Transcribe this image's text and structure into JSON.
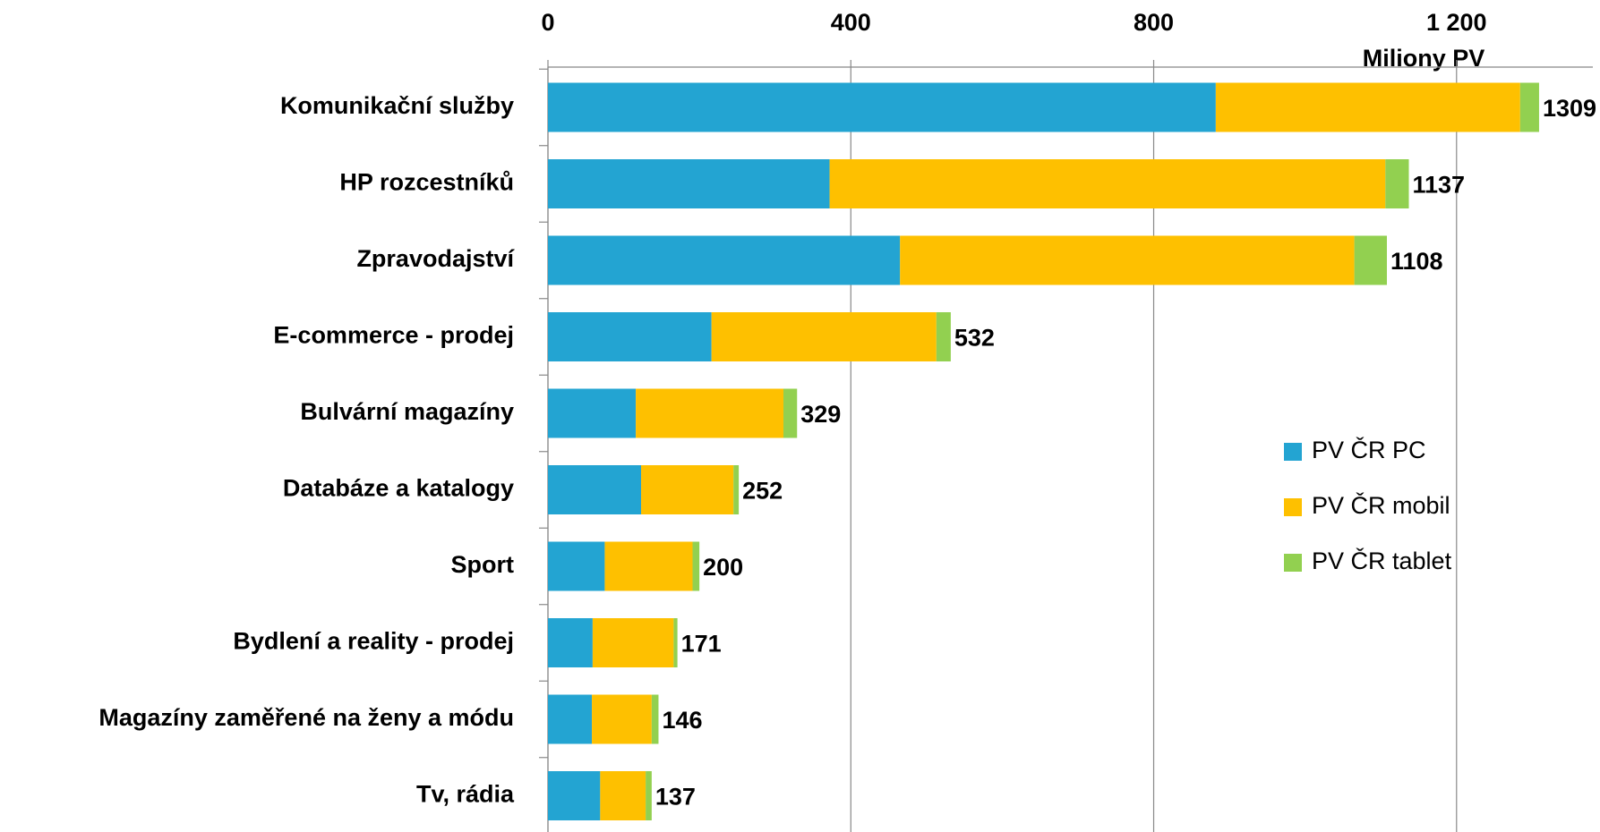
{
  "chart_data": {
    "type": "stacked-barh",
    "axis_label": "Miliony PV",
    "categories": [
      "Komunikační služby",
      "HP rozcestníků",
      "Zpravodajství",
      "E-commerce - prodej",
      "Bulvární magazíny",
      "Databáze a katalogy",
      "Sport",
      "Bydlení a reality - prodej",
      "Magazíny zaměřené na ženy a módu",
      "Tv, rádia"
    ],
    "series": [
      {
        "name": "PV ČR PC",
        "color": "#23a4d2",
        "values": [
          882,
          372,
          465,
          216,
          116,
          123,
          75,
          59,
          58,
          69
        ]
      },
      {
        "name": "PV ČR mobil",
        "color": "#fec000",
        "values": [
          402,
          734,
          600,
          297,
          195,
          122,
          116,
          107,
          79,
          60
        ]
      },
      {
        "name": "PV ČR tablet",
        "color": "#92d050",
        "values": [
          25,
          31,
          43,
          19,
          18,
          7,
          9,
          5,
          9,
          8
        ]
      }
    ],
    "totals": [
      1309,
      1137,
      1108,
      532,
      329,
      252,
      200,
      171,
      146,
      137
    ],
    "xlim": [
      0,
      1380
    ],
    "xticks": [
      0,
      400,
      800,
      {
        "value": 1200,
        "label": "1 200"
      }
    ],
    "grid": true,
    "legend": "right"
  }
}
